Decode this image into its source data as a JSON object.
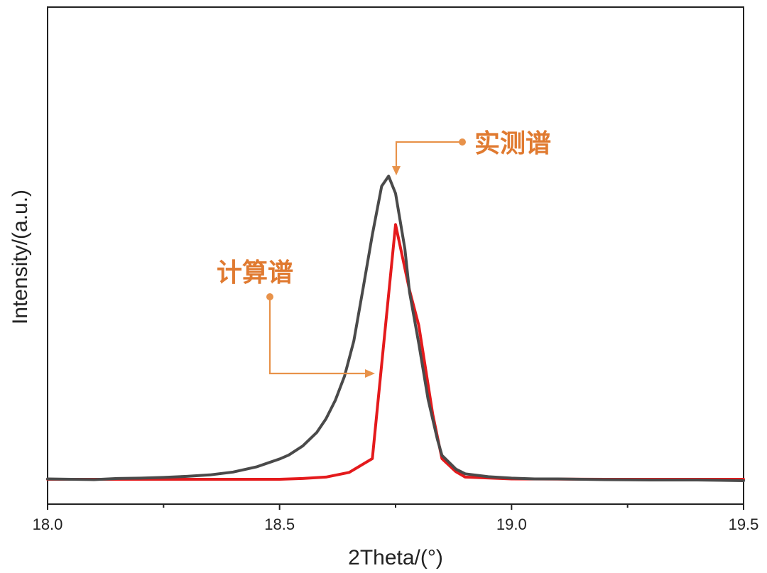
{
  "chart_data": {
    "type": "line",
    "title": "",
    "xlabel": "2Theta/(°)",
    "ylabel": "Intensity/(a.u.)",
    "xlim": [
      18.0,
      19.5
    ],
    "ylim": [
      0,
      100
    ],
    "xticks": [
      "18.0",
      "18.5",
      "19.0",
      "19.5"
    ],
    "xticks_minor": [
      18.25,
      18.75,
      19.25
    ],
    "grid": false,
    "series": [
      {
        "name": "实测谱",
        "color": "#4A4A4A",
        "x": [
          18.0,
          18.05,
          18.1,
          18.15,
          18.2,
          18.25,
          18.3,
          18.35,
          18.4,
          18.45,
          18.5,
          18.52,
          18.55,
          18.58,
          18.6,
          18.62,
          18.64,
          18.66,
          18.68,
          18.7,
          18.72,
          18.735,
          18.75,
          18.77,
          18.78,
          18.8,
          18.82,
          18.84,
          18.85,
          18.88,
          18.9,
          18.95,
          19.0,
          19.05,
          19.1,
          19.2,
          19.3,
          19.4,
          19.5
        ],
        "y": [
          0.5,
          0.4,
          0.3,
          0.6,
          0.7,
          0.9,
          1.2,
          1.6,
          2.4,
          3.8,
          6.0,
          7.1,
          9.6,
          13.3,
          17.1,
          22.2,
          28.9,
          38.6,
          53.2,
          68.0,
          81.4,
          84.2,
          79.4,
          64.1,
          52.2,
          37.9,
          22.6,
          11.5,
          7.0,
          3.2,
          1.9,
          1.1,
          0.7,
          0.5,
          0.5,
          0.3,
          0.2,
          0.2,
          0.0
        ]
      },
      {
        "name": "计算谱",
        "color": "#E41A1C",
        "x": [
          18.0,
          18.2,
          18.4,
          18.5,
          18.55,
          18.6,
          18.65,
          18.7,
          18.72,
          18.75,
          18.78,
          18.8,
          18.83,
          18.85,
          18.88,
          18.9,
          19.0,
          19.2,
          19.5
        ],
        "y": [
          0.4,
          0.4,
          0.4,
          0.4,
          0.6,
          1.0,
          2.3,
          6.1,
          32.1,
          70.8,
          52.7,
          42.9,
          18.4,
          6.1,
          2.5,
          1.0,
          0.5,
          0.4,
          0.4
        ]
      }
    ],
    "annotations": [
      {
        "text": "实测谱",
        "target_series": "实测谱"
      },
      {
        "text": "计算谱",
        "target_series": "计算谱"
      }
    ]
  }
}
